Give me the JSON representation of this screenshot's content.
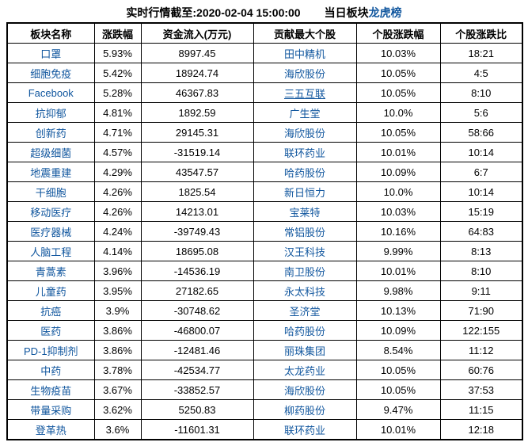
{
  "page": {
    "realtime_caption": "实时行情截至:2020-02-04 15:00:00",
    "board_prefix": "当日板块",
    "board_link": "龙虎榜"
  },
  "colors": {
    "link_blue": "#10569E",
    "text": "#000000",
    "border": "#000000",
    "background": "#FFFFFF"
  },
  "table": {
    "headers": [
      {
        "label": "板块名称",
        "blue": false
      },
      {
        "label": "涨跌幅",
        "blue": true
      },
      {
        "label": "资金流入(万元)",
        "blue": true
      },
      {
        "label": "贡献最大个股",
        "blue": false
      },
      {
        "label": "个股涨跌幅",
        "blue": false
      },
      {
        "label": "个股涨跌比",
        "blue": false
      }
    ],
    "rows": [
      {
        "sector": "口罩",
        "change": "5.93%",
        "inflow": "8997.45",
        "stock": "田中精机",
        "stock_change": "10.03%",
        "ratio": "18:21",
        "stock_underline": false
      },
      {
        "sector": "细胞免疫",
        "change": "5.42%",
        "inflow": "18924.74",
        "stock": "海欣股份",
        "stock_change": "10.05%",
        "ratio": "4:5",
        "stock_underline": false
      },
      {
        "sector": "Facebook",
        "change": "5.28%",
        "inflow": "46367.83",
        "stock": "三五互联",
        "stock_change": "10.05%",
        "ratio": "8:10",
        "stock_underline": true
      },
      {
        "sector": "抗抑郁",
        "change": "4.81%",
        "inflow": "1892.59",
        "stock": "广生堂",
        "stock_change": "10.0%",
        "ratio": "5:6",
        "stock_underline": false
      },
      {
        "sector": "创新药",
        "change": "4.71%",
        "inflow": "29145.31",
        "stock": "海欣股份",
        "stock_change": "10.05%",
        "ratio": "58:66",
        "stock_underline": false
      },
      {
        "sector": "超级细菌",
        "change": "4.57%",
        "inflow": "-31519.14",
        "stock": "联环药业",
        "stock_change": "10.01%",
        "ratio": "10:14",
        "stock_underline": false
      },
      {
        "sector": "地震重建",
        "change": "4.29%",
        "inflow": "43547.57",
        "stock": "哈药股份",
        "stock_change": "10.09%",
        "ratio": "6:7",
        "stock_underline": false
      },
      {
        "sector": "干细胞",
        "change": "4.26%",
        "inflow": "1825.54",
        "stock": "新日恒力",
        "stock_change": "10.0%",
        "ratio": "10:14",
        "stock_underline": false
      },
      {
        "sector": "移动医疗",
        "change": "4.26%",
        "inflow": "14213.01",
        "stock": "宝莱特",
        "stock_change": "10.03%",
        "ratio": "15:19",
        "stock_underline": false
      },
      {
        "sector": "医疗器械",
        "change": "4.24%",
        "inflow": "-39749.43",
        "stock": "常铝股份",
        "stock_change": "10.16%",
        "ratio": "64:83",
        "stock_underline": false
      },
      {
        "sector": "人脑工程",
        "change": "4.14%",
        "inflow": "18695.08",
        "stock": "汉王科技",
        "stock_change": "9.99%",
        "ratio": "8:13",
        "stock_underline": false
      },
      {
        "sector": "青蒿素",
        "change": "3.96%",
        "inflow": "-14536.19",
        "stock": "南卫股份",
        "stock_change": "10.01%",
        "ratio": "8:10",
        "stock_underline": false
      },
      {
        "sector": "儿童药",
        "change": "3.95%",
        "inflow": "27182.65",
        "stock": "永太科技",
        "stock_change": "9.98%",
        "ratio": "9:11",
        "stock_underline": false
      },
      {
        "sector": "抗癌",
        "change": "3.9%",
        "inflow": "-30748.62",
        "stock": "圣济堂",
        "stock_change": "10.13%",
        "ratio": "71:90",
        "stock_underline": false
      },
      {
        "sector": "医药",
        "change": "3.86%",
        "inflow": "-46800.07",
        "stock": "哈药股份",
        "stock_change": "10.09%",
        "ratio": "122:155",
        "stock_underline": false
      },
      {
        "sector": "PD-1抑制剂",
        "change": "3.86%",
        "inflow": "-12481.46",
        "stock": "丽珠集团",
        "stock_change": "8.54%",
        "ratio": "11:12",
        "stock_underline": false
      },
      {
        "sector": "中药",
        "change": "3.78%",
        "inflow": "-42534.77",
        "stock": "太龙药业",
        "stock_change": "10.05%",
        "ratio": "60:76",
        "stock_underline": false
      },
      {
        "sector": "生物疫苗",
        "change": "3.67%",
        "inflow": "-33852.57",
        "stock": "海欣股份",
        "stock_change": "10.05%",
        "ratio": "37:53",
        "stock_underline": false
      },
      {
        "sector": "带量采购",
        "change": "3.62%",
        "inflow": "5250.83",
        "stock": "柳药股份",
        "stock_change": "9.47%",
        "ratio": "11:15",
        "stock_underline": false
      },
      {
        "sector": "登革热",
        "change": "3.6%",
        "inflow": "-11601.31",
        "stock": "联环药业",
        "stock_change": "10.01%",
        "ratio": "12:18",
        "stock_underline": false
      }
    ]
  }
}
